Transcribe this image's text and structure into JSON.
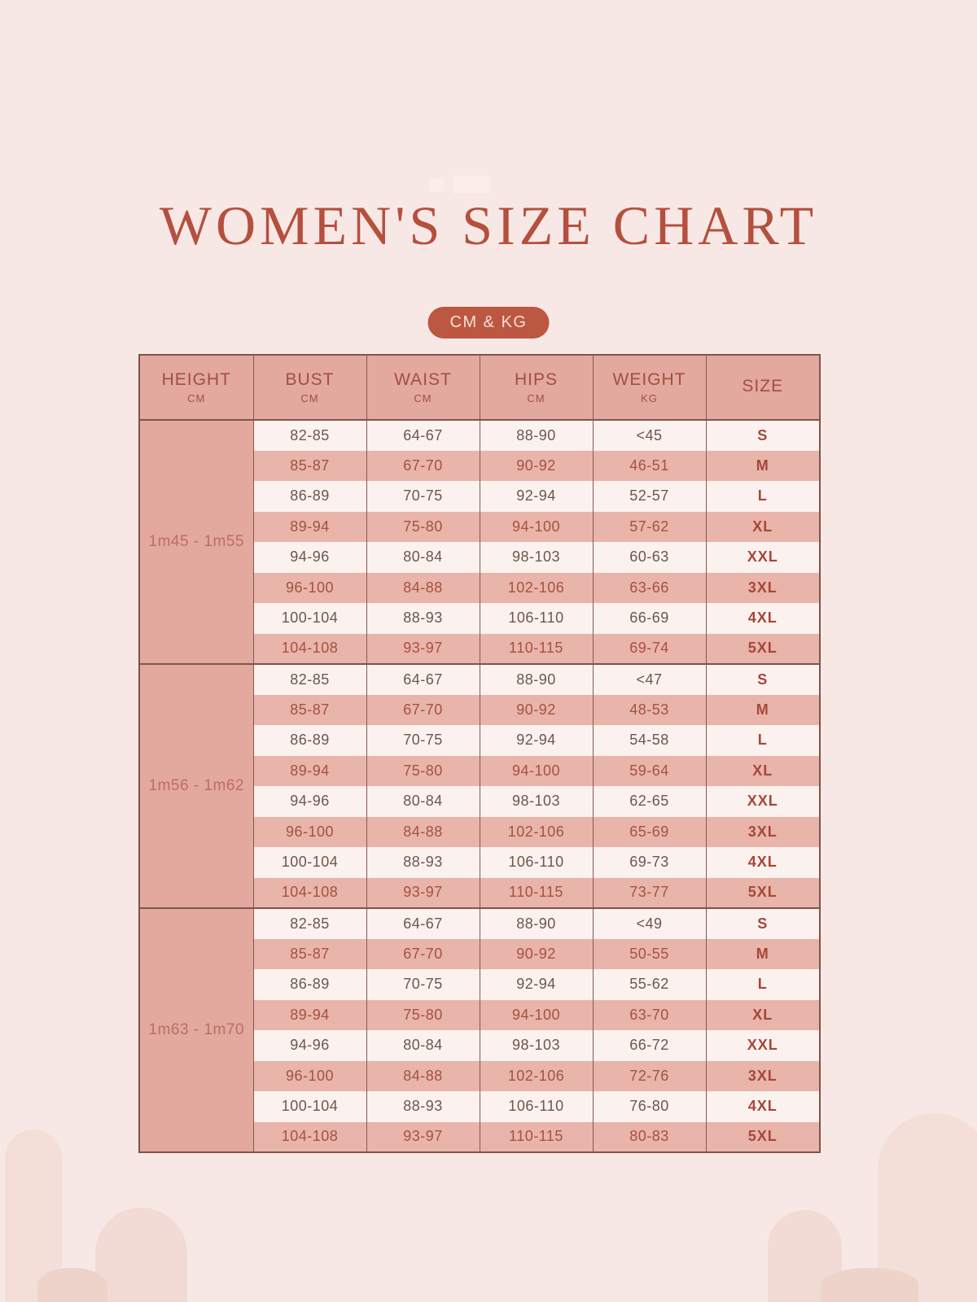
{
  "page": {
    "title": "WOMEN'S SIZE CHART",
    "badge": "CM & KG",
    "colors": {
      "background": "#f8e8e5",
      "accent": "#b5503e",
      "badge_bg": "#bc5742",
      "header_bg": "#e3a89e",
      "row_pink": "#e9b4aa",
      "row_light": "#fbf1ee",
      "border": "#7d554b"
    }
  },
  "table": {
    "columns": [
      {
        "label": "HEIGHT",
        "unit": "CM"
      },
      {
        "label": "BUST",
        "unit": "CM"
      },
      {
        "label": "WAIST",
        "unit": "CM"
      },
      {
        "label": "HIPS",
        "unit": "CM"
      },
      {
        "label": "WEIGHT",
        "unit": "KG"
      },
      {
        "label": "SIZE",
        "unit": ""
      }
    ],
    "groups": [
      {
        "height": "1m45 - 1m55",
        "rows": [
          {
            "bust": "82-85",
            "waist": "64-67",
            "hips": "88-90",
            "weight": "<45",
            "size": "S"
          },
          {
            "bust": "85-87",
            "waist": "67-70",
            "hips": "90-92",
            "weight": "46-51",
            "size": "M"
          },
          {
            "bust": "86-89",
            "waist": "70-75",
            "hips": "92-94",
            "weight": "52-57",
            "size": "L"
          },
          {
            "bust": "89-94",
            "waist": "75-80",
            "hips": "94-100",
            "weight": "57-62",
            "size": "XL"
          },
          {
            "bust": "94-96",
            "waist": "80-84",
            "hips": "98-103",
            "weight": "60-63",
            "size": "XXL"
          },
          {
            "bust": "96-100",
            "waist": "84-88",
            "hips": "102-106",
            "weight": "63-66",
            "size": "3XL"
          },
          {
            "bust": "100-104",
            "waist": "88-93",
            "hips": "106-110",
            "weight": "66-69",
            "size": "4XL"
          },
          {
            "bust": "104-108",
            "waist": "93-97",
            "hips": "110-115",
            "weight": "69-74",
            "size": "5XL"
          }
        ]
      },
      {
        "height": "1m56 - 1m62",
        "rows": [
          {
            "bust": "82-85",
            "waist": "64-67",
            "hips": "88-90",
            "weight": "<47",
            "size": "S"
          },
          {
            "bust": "85-87",
            "waist": "67-70",
            "hips": "90-92",
            "weight": "48-53",
            "size": "M"
          },
          {
            "bust": "86-89",
            "waist": "70-75",
            "hips": "92-94",
            "weight": "54-58",
            "size": "L"
          },
          {
            "bust": "89-94",
            "waist": "75-80",
            "hips": "94-100",
            "weight": "59-64",
            "size": "XL"
          },
          {
            "bust": "94-96",
            "waist": "80-84",
            "hips": "98-103",
            "weight": "62-65",
            "size": "XXL"
          },
          {
            "bust": "96-100",
            "waist": "84-88",
            "hips": "102-106",
            "weight": "65-69",
            "size": "3XL"
          },
          {
            "bust": "100-104",
            "waist": "88-93",
            "hips": "106-110",
            "weight": "69-73",
            "size": "4XL"
          },
          {
            "bust": "104-108",
            "waist": "93-97",
            "hips": "110-115",
            "weight": "73-77",
            "size": "5XL"
          }
        ]
      },
      {
        "height": "1m63 - 1m70",
        "rows": [
          {
            "bust": "82-85",
            "waist": "64-67",
            "hips": "88-90",
            "weight": "<49",
            "size": "S"
          },
          {
            "bust": "85-87",
            "waist": "67-70",
            "hips": "90-92",
            "weight": "50-55",
            "size": "M"
          },
          {
            "bust": "86-89",
            "waist": "70-75",
            "hips": "92-94",
            "weight": "55-62",
            "size": "L"
          },
          {
            "bust": "89-94",
            "waist": "75-80",
            "hips": "94-100",
            "weight": "63-70",
            "size": "XL"
          },
          {
            "bust": "94-96",
            "waist": "80-84",
            "hips": "98-103",
            "weight": "66-72",
            "size": "XXL"
          },
          {
            "bust": "96-100",
            "waist": "84-88",
            "hips": "102-106",
            "weight": "72-76",
            "size": "3XL"
          },
          {
            "bust": "100-104",
            "waist": "88-93",
            "hips": "106-110",
            "weight": "76-80",
            "size": "4XL"
          },
          {
            "bust": "104-108",
            "waist": "93-97",
            "hips": "110-115",
            "weight": "80-83",
            "size": "5XL"
          }
        ]
      }
    ]
  }
}
